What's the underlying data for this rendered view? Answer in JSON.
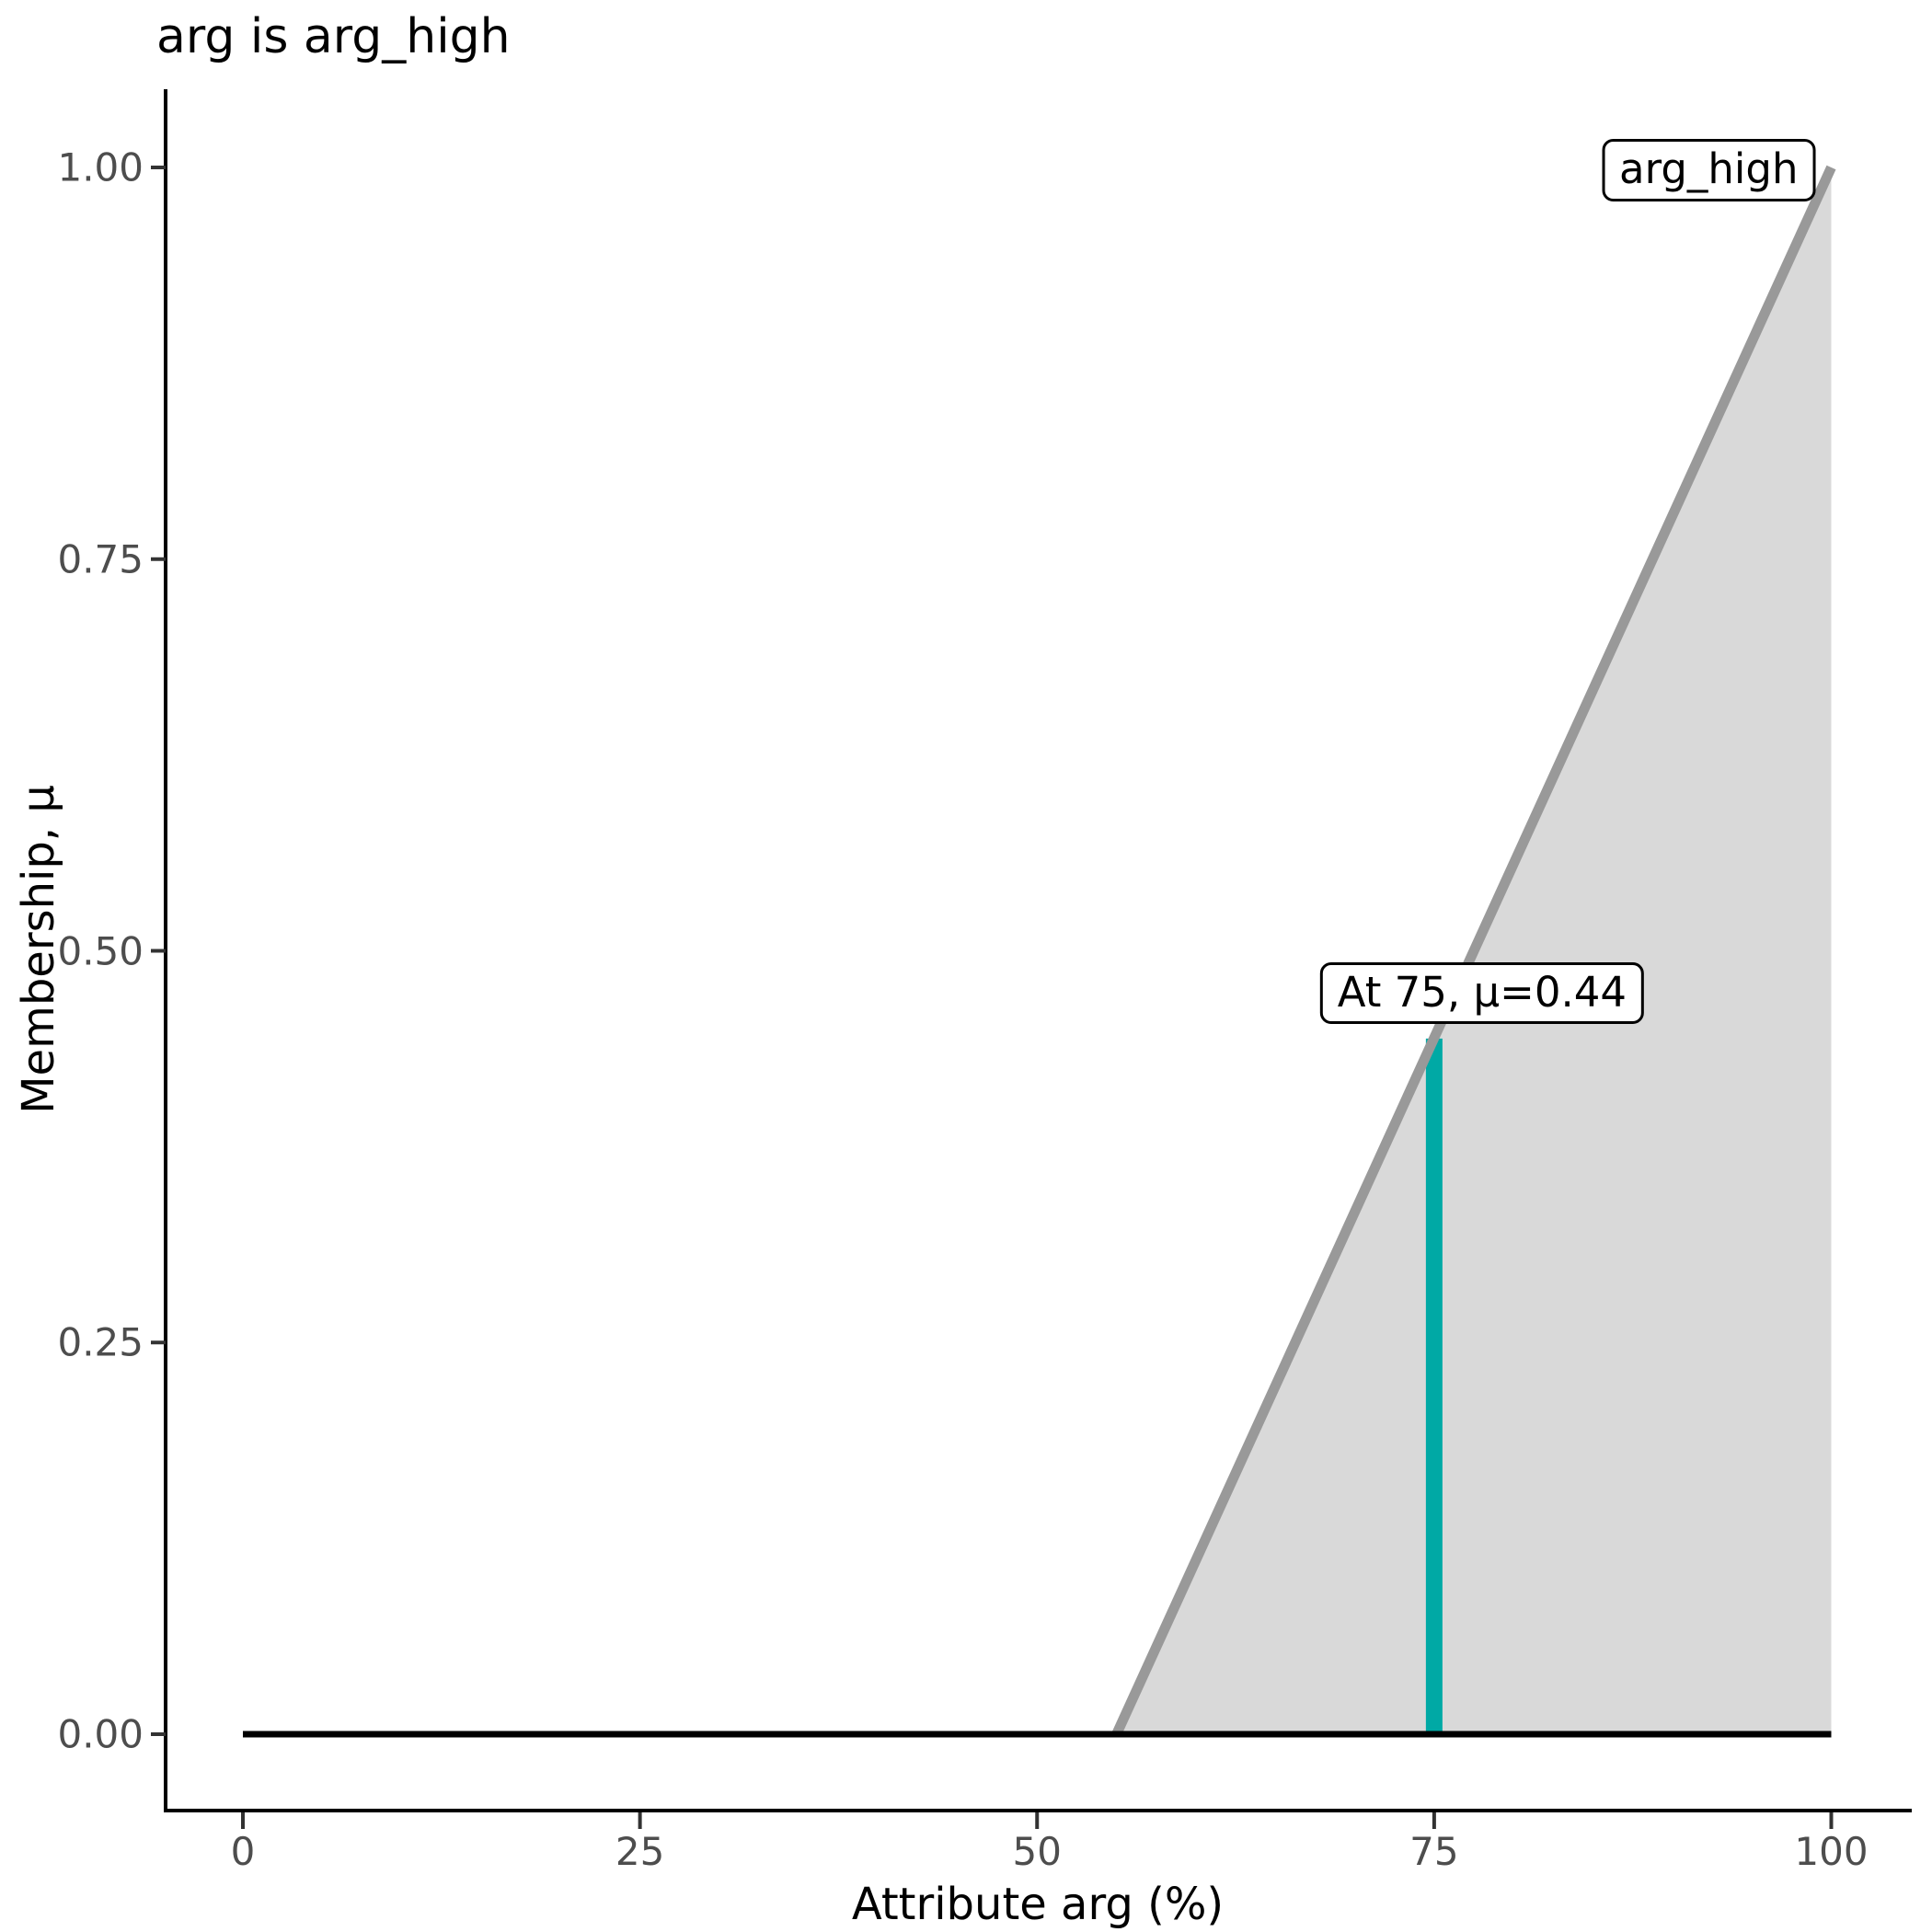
{
  "title": "arg is arg_high",
  "chart_data": {
    "type": "line",
    "title": "arg is arg_high",
    "xlabel": "Attribute arg (%)",
    "ylabel": "Membership, μ",
    "xlim": [
      0,
      100
    ],
    "ylim": [
      0,
      1
    ],
    "grid": false,
    "legend_position": "none",
    "x_ticks": {
      "values": [
        0,
        25,
        50,
        75,
        100
      ],
      "labels": [
        "0",
        "25",
        "50",
        "75",
        "100"
      ]
    },
    "y_ticks": {
      "values": [
        0,
        0.25,
        0.5,
        0.75,
        1.0
      ],
      "labels": [
        "0.00",
        "0.25",
        "0.50",
        "0.75",
        "1.00"
      ]
    },
    "series": [
      {
        "name": "zero baseline",
        "points": [
          [
            0,
            0
          ],
          [
            100,
            0
          ]
        ],
        "color": "#000000",
        "width": 7
      },
      {
        "name": "arg_high membership function",
        "points": [
          [
            55,
            0
          ],
          [
            100,
            1
          ]
        ],
        "color": "#999999",
        "width": 11,
        "fill": "#d9d9d9"
      }
    ],
    "marker": {
      "x": 75,
      "mu": 0.444,
      "mu_display": "0.44",
      "label": "At 75, μ=0.44",
      "color": "#00a9a5",
      "width": 18
    },
    "set_label": {
      "text": "arg_high",
      "anchor": [
        100,
        1
      ]
    }
  },
  "colors": {
    "membership_line": "#999999",
    "membership_fill": "#d9d9d9",
    "baseline": "#000000",
    "marker": "#00a9a5",
    "axis_line": "#000000",
    "tick_mark": "#333333",
    "tick_label": "#4d4d4d",
    "annotation_border": "#000000",
    "annotation_bg": "#ffffff"
  }
}
